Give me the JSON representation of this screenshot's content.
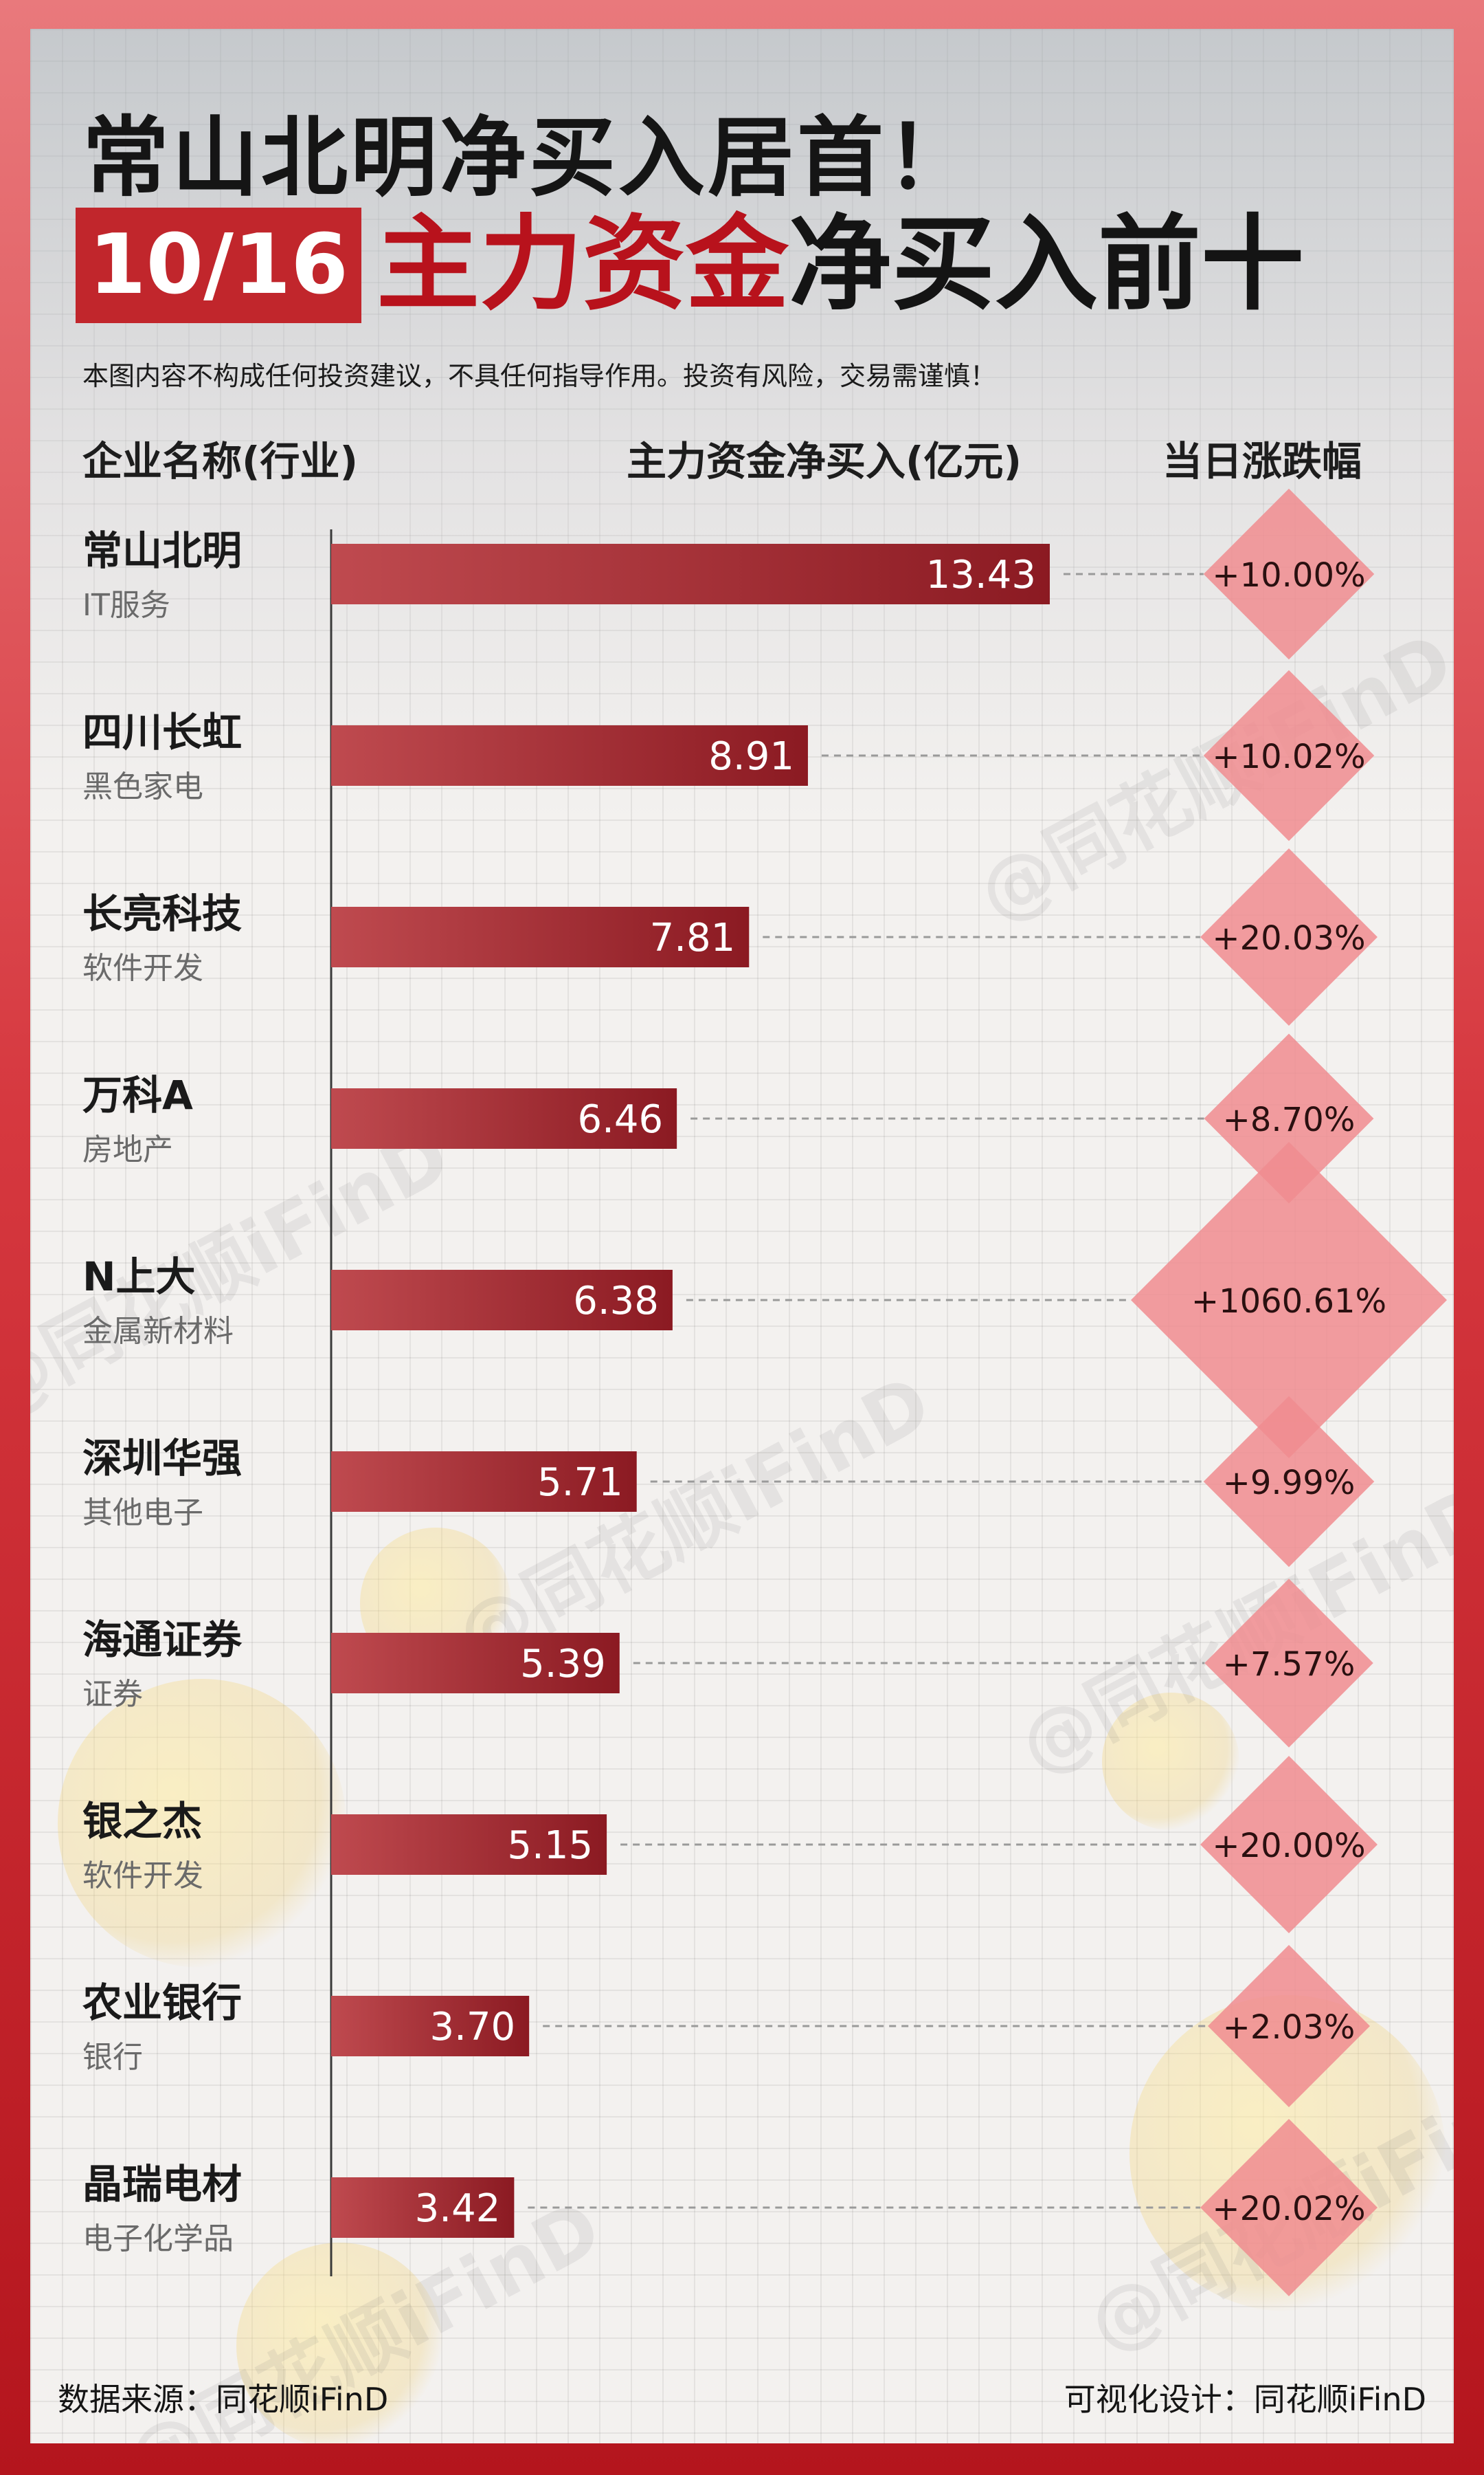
{
  "header": {
    "headline": "常山北明净买入居首！",
    "date": "10/16",
    "subtitle_red": "主力资金",
    "subtitle_black": "净买入前十",
    "disclaimer": "本图内容不构成任何投资建议，不具任何指导作用。投资有风险，交易需谨慎！"
  },
  "columns": {
    "company": "企业名称(行业)",
    "net_buy": "主力资金净买入(亿元)",
    "change": "当日涨跌幅"
  },
  "footer": {
    "source": "数据来源：同花顺iFinD",
    "design": "可视化设计：同花顺iFinD"
  },
  "watermark": "@同花顺iFinD",
  "colors": {
    "bar_start": "#bf4a4f",
    "bar_end": "#8b1a22",
    "diamond": "#f08c8f",
    "accent_red": "#c1262c"
  },
  "chart_data": {
    "type": "bar",
    "orientation": "horizontal",
    "categories": [
      "常山北明",
      "四川长虹",
      "长亮科技",
      "万科A",
      "N上大",
      "深圳华强",
      "海通证券",
      "银之杰",
      "农业银行",
      "晶瑞电材"
    ],
    "industries": [
      "IT服务",
      "黑色家电",
      "软件开发",
      "房地产",
      "金属新材料",
      "其他电子",
      "证券",
      "软件开发",
      "银行",
      "电子化学品"
    ],
    "series": [
      {
        "name": "主力资金净买入(亿元)",
        "values": [
          13.43,
          8.91,
          7.81,
          6.46,
          6.38,
          5.71,
          5.39,
          5.15,
          3.7,
          3.42
        ]
      }
    ],
    "value_labels": [
      "13.43",
      "8.91",
      "7.81",
      "6.46",
      "6.38",
      "5.71",
      "5.39",
      "5.15",
      "3.70",
      "3.42"
    ],
    "change_pct": [
      10.0,
      10.02,
      20.03,
      8.7,
      1060.61,
      9.99,
      7.57,
      20.0,
      2.03,
      20.02
    ],
    "change_labels": [
      "+10.00%",
      "+10.02%",
      "+20.03%",
      "+8.70%",
      "+1060.61%",
      "+9.99%",
      "+7.57%",
      "+20.00%",
      "+2.03%",
      "+20.02%"
    ],
    "title": "主力资金净买入前十",
    "xlim": [
      0,
      13.43
    ]
  }
}
